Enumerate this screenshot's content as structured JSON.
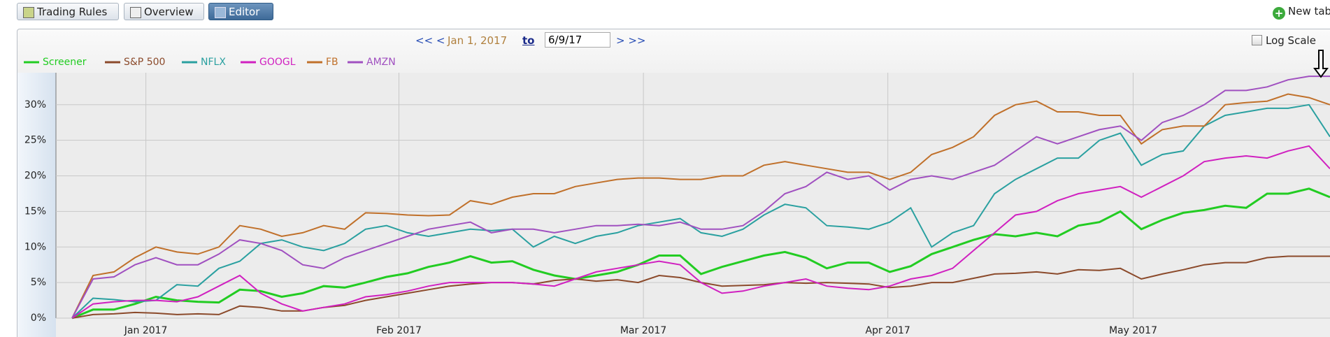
{
  "tabs": [
    "Trading Rules",
    "Overview",
    "Editor"
  ],
  "new_tab": "New tab",
  "nav": {
    "prev": "<< <",
    "start": "Jan 1, 2017",
    "to": "to",
    "end": "6/9/17",
    "next": "> >>"
  },
  "log_scale_label": "Log Scale",
  "chart_data": {
    "type": "line",
    "log_scale": false,
    "grid": true,
    "legend": "top-left",
    "xlim": [
      -0.77,
      60
    ],
    "ylim": [
      0,
      34.5
    ],
    "xticks": [
      {
        "value": 3.52,
        "label": "Jan 2017"
      },
      {
        "value": 15.59,
        "label": "Feb 2017"
      },
      {
        "value": 27.25,
        "label": "Mar 2017"
      },
      {
        "value": 38.91,
        "label": "Apr 2017"
      },
      {
        "value": 50.61,
        "label": "May 2017"
      }
    ],
    "yticks": [
      {
        "value": 0,
        "label": "0%"
      },
      {
        "value": 5,
        "label": "5%"
      },
      {
        "value": 10,
        "label": "10%"
      },
      {
        "value": 15,
        "label": "15%"
      },
      {
        "value": 20,
        "label": "20%"
      },
      {
        "value": 25,
        "label": "25%"
      },
      {
        "value": 30,
        "label": "30%"
      }
    ],
    "series": [
      {
        "name": "Screener",
        "color": "#22cc22",
        "values": [
          0,
          1.2,
          1.2,
          2.0,
          3.0,
          2.5,
          2.3,
          2.2,
          4.0,
          3.8,
          3.0,
          3.5,
          4.5,
          4.3,
          5.0,
          5.8,
          6.3,
          7.2,
          7.8,
          8.7,
          7.8,
          8.0,
          6.8,
          6.0,
          5.5,
          6.0,
          6.5,
          7.5,
          8.8,
          8.8,
          6.2,
          7.2,
          8.0,
          8.8,
          9.3,
          8.5,
          7.0,
          7.8,
          7.8,
          6.5,
          7.3,
          9.0,
          10.0,
          11.0,
          11.8,
          11.5,
          12.0,
          11.5,
          13.0,
          13.5,
          15.0,
          12.5,
          13.8,
          14.8,
          15.2,
          15.8,
          15.5,
          17.5,
          17.5,
          18.2,
          17.0
        ]
      },
      {
        "name": "S&P 500",
        "color": "#8b4a2b",
        "values": [
          0,
          0.5,
          0.6,
          0.8,
          0.7,
          0.5,
          0.6,
          0.5,
          1.7,
          1.5,
          1.0,
          1.0,
          1.5,
          1.8,
          2.5,
          3.0,
          3.5,
          4.0,
          4.5,
          4.8,
          5.0,
          5.0,
          4.8,
          5.3,
          5.5,
          5.2,
          5.4,
          5.0,
          6.0,
          5.7,
          5.0,
          4.5,
          4.6,
          4.7,
          5.0,
          4.9,
          5.0,
          4.9,
          4.8,
          4.3,
          4.5,
          5.0,
          5.0,
          5.6,
          6.2,
          6.3,
          6.5,
          6.2,
          6.8,
          6.7,
          7.0,
          5.5,
          6.2,
          6.8,
          7.5,
          7.8,
          7.8,
          8.5,
          8.7,
          8.7,
          8.7
        ]
      },
      {
        "name": "NFLX",
        "color": "#2aa0a0",
        "values": [
          0,
          2.8,
          2.6,
          2.3,
          2.5,
          4.7,
          4.5,
          7.0,
          8.0,
          10.5,
          11.0,
          10.0,
          9.5,
          10.5,
          12.5,
          13.0,
          12.0,
          11.5,
          12.0,
          12.5,
          12.3,
          12.5,
          10.0,
          11.5,
          10.5,
          11.5,
          12.0,
          13.0,
          13.5,
          14.0,
          12.0,
          11.5,
          12.5,
          14.5,
          16.0,
          15.5,
          13.0,
          12.8,
          12.5,
          13.5,
          15.5,
          10.0,
          12.0,
          13.0,
          17.5,
          19.5,
          21.0,
          22.5,
          22.5,
          25.0,
          26.0,
          21.5,
          23.0,
          23.5,
          27.0,
          28.5,
          29.0,
          29.5,
          29.5,
          30.0,
          25.5
        ]
      },
      {
        "name": "GOOGL",
        "color": "#d020c0",
        "values": [
          0,
          2.0,
          2.3,
          2.5,
          2.5,
          2.3,
          3.0,
          4.5,
          6.0,
          3.5,
          2.0,
          1.0,
          1.5,
          2.0,
          3.0,
          3.3,
          3.8,
          4.5,
          5.0,
          5.0,
          5.0,
          5.0,
          4.8,
          4.5,
          5.5,
          6.5,
          7.0,
          7.5,
          8.0,
          7.5,
          5.0,
          3.5,
          3.8,
          4.5,
          5.0,
          5.5,
          4.5,
          4.2,
          4.0,
          4.5,
          5.5,
          6.0,
          7.0,
          9.5,
          12.0,
          14.5,
          15.0,
          16.5,
          17.5,
          18.0,
          18.5,
          17.0,
          18.5,
          20.0,
          22.0,
          22.5,
          22.8,
          22.5,
          23.5,
          24.2,
          21.0
        ]
      },
      {
        "name": "FB",
        "color": "#c0702a",
        "values": [
          0,
          6.0,
          6.5,
          8.5,
          10.0,
          9.3,
          9.0,
          10.0,
          13.0,
          12.5,
          11.5,
          12.0,
          13.0,
          12.5,
          14.8,
          14.7,
          14.5,
          14.4,
          14.5,
          16.5,
          16.0,
          17.0,
          17.5,
          17.5,
          18.5,
          19.0,
          19.5,
          19.7,
          19.7,
          19.5,
          19.5,
          20.0,
          20.0,
          21.5,
          22.0,
          21.5,
          21.0,
          20.5,
          20.5,
          19.5,
          20.5,
          23.0,
          24.0,
          25.5,
          28.5,
          30.0,
          30.5,
          29.0,
          29.0,
          28.5,
          28.5,
          24.5,
          26.5,
          27.0,
          27.0,
          30.0,
          30.3,
          30.5,
          31.5,
          31.0,
          30.0
        ]
      },
      {
        "name": "AMZN",
        "color": "#a050c0",
        "values": [
          0,
          5.5,
          5.8,
          7.5,
          8.5,
          7.5,
          7.5,
          9.0,
          11.0,
          10.5,
          9.5,
          7.5,
          7.0,
          8.5,
          9.5,
          10.5,
          11.5,
          12.5,
          13.0,
          13.5,
          12.0,
          12.5,
          12.5,
          12.0,
          12.5,
          13.0,
          13.0,
          13.2,
          13.0,
          13.5,
          12.5,
          12.5,
          13.0,
          15.0,
          17.5,
          18.5,
          20.5,
          19.5,
          20.0,
          18.0,
          19.5,
          20.0,
          19.5,
          20.5,
          21.5,
          23.5,
          25.5,
          24.5,
          25.5,
          26.5,
          27.0,
          25.0,
          27.5,
          28.5,
          30.0,
          32.0,
          32.0,
          32.5,
          33.5,
          34.0,
          34.0
        ]
      }
    ]
  }
}
